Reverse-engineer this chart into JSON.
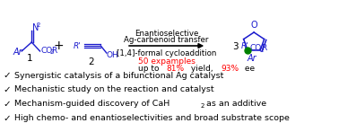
{
  "background_color": "#ffffff",
  "arrow_label_top": "Enantioselective",
  "arrow_label_top2": "Ag-carbenoid transfer",
  "arrow_label_bottom": "[1,4]-formal cycloaddition",
  "stats_line1": "50 expamples",
  "stats_line2_black1": "up to ",
  "stats_line2_red1": "81%",
  "stats_line2_black2": " yield, ",
  "stats_line2_red2": "93%",
  "stats_line2_black3": " ee",
  "bullet_points": [
    "Synergistic catalysis of a bifunctional Ag catalyst",
    "Mechanistic study on the reaction and catalyst",
    "Mechanism-guided discovery of CaH₂ as an additive",
    "High chemo- and enantioselectivities and broad substrate scope"
  ],
  "checkmark": "✓",
  "text_color": "#000000",
  "red_color": "#ff0000",
  "blue_color": "#1a1acd",
  "green_color": "#008000",
  "dark_green": "#006400"
}
